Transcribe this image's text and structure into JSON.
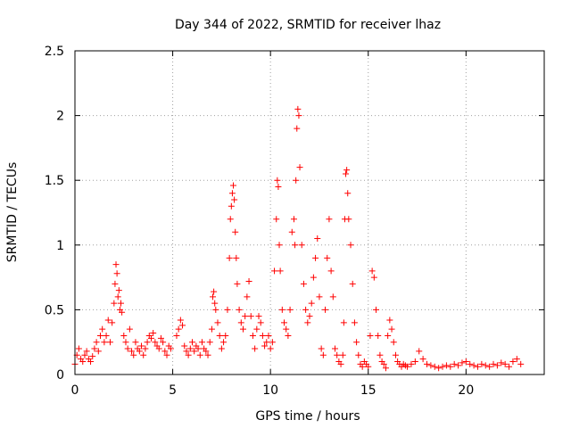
{
  "chart_data": {
    "type": "scatter",
    "title": "Day 344 of 2022, SRMTID for receiver lhaz",
    "xlabel": "GPS time / hours",
    "ylabel": "SRMTID / TECUs",
    "xlim": [
      0,
      24
    ],
    "ylim": [
      0,
      2.5
    ],
    "x_ticks": [
      0,
      5,
      10,
      15,
      20
    ],
    "x_tick_labels": [
      "0",
      "5",
      "10",
      "15",
      "20"
    ],
    "y_ticks": [
      0,
      0.5,
      1,
      1.5,
      2,
      2.5
    ],
    "y_tick_labels": [
      "0",
      "0.5",
      "1",
      "1.5",
      "2",
      "2.5"
    ],
    "grid": true,
    "marker": "plus",
    "color": "#ff0000",
    "series": [
      {
        "name": "SRMTID",
        "x": [
          0.0,
          0.1,
          0.2,
          0.3,
          0.4,
          0.5,
          0.6,
          0.7,
          0.8,
          0.9,
          1.0,
          1.1,
          1.2,
          1.3,
          1.4,
          1.5,
          1.6,
          1.7,
          1.8,
          1.9,
          2.0,
          2.05,
          2.1,
          2.15,
          2.2,
          2.25,
          2.3,
          2.35,
          2.4,
          2.5,
          2.6,
          2.7,
          2.8,
          2.9,
          3.0,
          3.1,
          3.2,
          3.3,
          3.4,
          3.5,
          3.6,
          3.7,
          3.8,
          3.9,
          4.0,
          4.1,
          4.2,
          4.3,
          4.4,
          4.5,
          4.6,
          4.7,
          4.8,
          4.9,
          5.2,
          5.3,
          5.4,
          5.5,
          5.6,
          5.7,
          5.8,
          5.9,
          6.0,
          6.1,
          6.2,
          6.3,
          6.4,
          6.5,
          6.6,
          6.7,
          6.8,
          6.9,
          7.0,
          7.05,
          7.1,
          7.15,
          7.2,
          7.3,
          7.4,
          7.5,
          7.6,
          7.7,
          7.8,
          7.9,
          7.95,
          8.0,
          8.05,
          8.1,
          8.15,
          8.2,
          8.25,
          8.3,
          8.4,
          8.5,
          8.6,
          8.7,
          8.8,
          8.9,
          9.0,
          9.1,
          9.2,
          9.3,
          9.4,
          9.5,
          9.6,
          9.7,
          9.8,
          9.9,
          10.0,
          10.1,
          10.2,
          10.3,
          10.35,
          10.4,
          10.45,
          10.5,
          10.6,
          10.7,
          10.8,
          10.9,
          11.0,
          11.1,
          11.2,
          11.25,
          11.3,
          11.35,
          11.4,
          11.45,
          11.5,
          11.6,
          11.7,
          11.8,
          11.9,
          12.0,
          12.1,
          12.2,
          12.3,
          12.4,
          12.5,
          12.6,
          12.7,
          12.8,
          12.9,
          13.0,
          13.1,
          13.2,
          13.3,
          13.4,
          13.5,
          13.6,
          13.7,
          13.75,
          13.8,
          13.85,
          13.9,
          13.95,
          14.0,
          14.1,
          14.2,
          14.3,
          14.4,
          14.5,
          14.6,
          14.7,
          14.8,
          14.9,
          15.0,
          15.1,
          15.2,
          15.3,
          15.4,
          15.5,
          15.6,
          15.7,
          15.8,
          15.9,
          16.0,
          16.1,
          16.2,
          16.3,
          16.4,
          16.5,
          16.6,
          16.7,
          16.8,
          16.9,
          17.0,
          17.2,
          17.4,
          17.6,
          17.8,
          18.0,
          18.2,
          18.4,
          18.6,
          18.8,
          19.0,
          19.2,
          19.4,
          19.6,
          19.8,
          20.0,
          20.2,
          20.4,
          20.6,
          20.8,
          21.0,
          21.2,
          21.4,
          21.6,
          21.8,
          22.0,
          22.2,
          22.4,
          22.6,
          22.8
        ],
        "y": [
          0.08,
          0.15,
          0.2,
          0.12,
          0.1,
          0.15,
          0.18,
          0.12,
          0.1,
          0.14,
          0.2,
          0.25,
          0.18,
          0.3,
          0.35,
          0.25,
          0.3,
          0.42,
          0.25,
          0.4,
          0.55,
          0.7,
          0.85,
          0.78,
          0.6,
          0.65,
          0.5,
          0.55,
          0.48,
          0.3,
          0.25,
          0.2,
          0.35,
          0.18,
          0.15,
          0.25,
          0.2,
          0.18,
          0.22,
          0.15,
          0.2,
          0.25,
          0.3,
          0.28,
          0.32,
          0.25,
          0.22,
          0.2,
          0.28,
          0.25,
          0.18,
          0.15,
          0.22,
          0.2,
          0.3,
          0.35,
          0.42,
          0.38,
          0.22,
          0.18,
          0.15,
          0.2,
          0.25,
          0.18,
          0.22,
          0.2,
          0.15,
          0.25,
          0.2,
          0.18,
          0.15,
          0.25,
          0.35,
          0.6,
          0.64,
          0.55,
          0.5,
          0.4,
          0.3,
          0.2,
          0.25,
          0.3,
          0.5,
          0.9,
          1.2,
          1.3,
          1.4,
          1.46,
          1.35,
          1.1,
          0.9,
          0.7,
          0.5,
          0.4,
          0.35,
          0.45,
          0.6,
          0.72,
          0.45,
          0.3,
          0.2,
          0.35,
          0.45,
          0.4,
          0.3,
          0.22,
          0.25,
          0.3,
          0.2,
          0.25,
          0.8,
          1.2,
          1.5,
          1.45,
          1.0,
          0.8,
          0.5,
          0.4,
          0.35,
          0.3,
          0.5,
          1.1,
          1.2,
          1.0,
          1.5,
          1.9,
          2.05,
          2.0,
          1.6,
          1.0,
          0.7,
          0.5,
          0.4,
          0.45,
          0.55,
          0.75,
          0.9,
          1.05,
          0.6,
          0.2,
          0.15,
          0.5,
          0.9,
          1.2,
          0.8,
          0.6,
          0.2,
          0.15,
          0.1,
          0.08,
          0.15,
          0.4,
          1.2,
          1.55,
          1.58,
          1.4,
          1.2,
          1.0,
          0.7,
          0.4,
          0.25,
          0.15,
          0.08,
          0.06,
          0.1,
          0.08,
          0.06,
          0.3,
          0.8,
          0.75,
          0.5,
          0.3,
          0.15,
          0.1,
          0.08,
          0.05,
          0.3,
          0.42,
          0.35,
          0.25,
          0.15,
          0.1,
          0.08,
          0.06,
          0.08,
          0.07,
          0.06,
          0.08,
          0.1,
          0.18,
          0.12,
          0.08,
          0.07,
          0.06,
          0.05,
          0.06,
          0.07,
          0.06,
          0.08,
          0.07,
          0.09,
          0.1,
          0.08,
          0.07,
          0.06,
          0.08,
          0.07,
          0.06,
          0.08,
          0.07,
          0.09,
          0.08,
          0.06,
          0.1,
          0.12,
          0.08
        ]
      }
    ]
  }
}
